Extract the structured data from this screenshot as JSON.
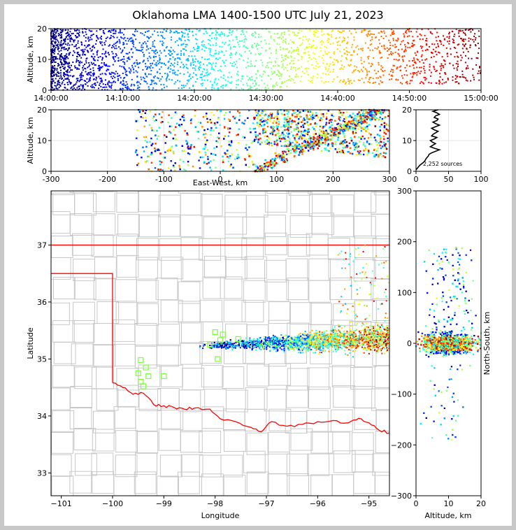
{
  "title": "Oklahoma LMA 1400-1500 UTC July 21, 2023",
  "colors": {
    "border_red": "#ff0000",
    "county": "#c8c8c8",
    "hist_line": "#000000",
    "grid": "#e6e6e6",
    "colormap": "jet (blue early -> red late)"
  },
  "chart_data": [
    {
      "type": "scatter",
      "panel": "altitude-time",
      "xlabel": "",
      "ylabel": "Altitude, km",
      "xlim": [
        "14:00:00",
        "15:00:00"
      ],
      "ylim": [
        0,
        20
      ],
      "x_ticks": [
        "14:00:00",
        "14:10:00",
        "14:20:00",
        "14:30:00",
        "14:40:00",
        "14:50:00",
        "15:00:00"
      ],
      "y_ticks": [
        0,
        10,
        20
      ],
      "color_by": "time"
    },
    {
      "type": "scatter",
      "panel": "altitude-eastwest",
      "xlabel": "East-West, km",
      "ylabel": "Altitude, km",
      "xlim": [
        -300,
        300
      ],
      "ylim": [
        0,
        20
      ],
      "x_ticks": [
        -300,
        -200,
        -100,
        0,
        100,
        200,
        300
      ],
      "y_ticks": [
        0,
        10,
        20
      ],
      "grid": true
    },
    {
      "type": "line",
      "panel": "altitude-histogram",
      "annotation": "2,252 sources",
      "xlim": [
        0,
        100
      ],
      "ylim": [
        0,
        20
      ],
      "x_ticks": [
        0,
        50,
        100
      ],
      "y_ticks": [
        0,
        10,
        20
      ],
      "grid": true,
      "profile": [
        [
          0,
          0.5
        ],
        [
          2,
          1
        ],
        [
          4,
          1.5
        ],
        [
          6,
          2
        ],
        [
          9,
          2.5
        ],
        [
          12,
          3
        ],
        [
          14,
          3.5
        ],
        [
          15,
          4
        ],
        [
          17,
          4.5
        ],
        [
          19,
          5
        ],
        [
          20,
          5.5
        ],
        [
          24,
          6
        ],
        [
          30,
          6.5
        ],
        [
          36,
          7
        ],
        [
          28,
          7.5
        ],
        [
          22,
          8
        ],
        [
          26,
          8.5
        ],
        [
          30,
          9
        ],
        [
          25,
          9.5
        ],
        [
          22,
          10
        ],
        [
          28,
          10.5
        ],
        [
          32,
          11
        ],
        [
          24,
          11.5
        ],
        [
          26,
          12
        ],
        [
          30,
          12.5
        ],
        [
          34,
          13
        ],
        [
          28,
          13.5
        ],
        [
          24,
          14
        ],
        [
          30,
          14.5
        ],
        [
          36,
          15
        ],
        [
          30,
          15.5
        ],
        [
          26,
          16
        ],
        [
          32,
          16.5
        ],
        [
          34,
          17
        ],
        [
          28,
          17.5
        ],
        [
          30,
          18
        ],
        [
          36,
          18.5
        ],
        [
          32,
          19
        ],
        [
          26,
          19.5
        ],
        [
          34,
          20
        ]
      ]
    },
    {
      "type": "scatter",
      "panel": "plan-view",
      "xlabel": "Longitude",
      "ylabel": "Latitude",
      "xlim": [
        -101.2,
        -94.6
      ],
      "ylim": [
        32.6,
        37.95
      ],
      "x_ticks": [
        -101,
        -100,
        -99,
        -98,
        -97,
        -96,
        -95
      ],
      "y_ticks": [
        33,
        34,
        35,
        36,
        37
      ],
      "station_markers": [
        [
          -99.45,
          34.98
        ],
        [
          -99.35,
          34.85
        ],
        [
          -99.5,
          34.75
        ],
        [
          -99.3,
          34.7
        ],
        [
          -99.0,
          34.7
        ],
        [
          -99.45,
          34.6
        ],
        [
          -99.4,
          34.52
        ],
        [
          -98.0,
          35.47
        ],
        [
          -97.85,
          35.43
        ],
        [
          -97.9,
          35.33
        ],
        [
          -98.1,
          35.25
        ],
        [
          -97.95,
          35.0
        ],
        [
          -97.55,
          35.35
        ]
      ]
    },
    {
      "type": "scatter",
      "panel": "northsouth-altitude",
      "xlabel": "Altitude, km",
      "ylabel": "North-South, km",
      "xlim": [
        0,
        20
      ],
      "ylim": [
        -300,
        300
      ],
      "x_ticks": [
        0,
        10,
        20
      ],
      "y_ticks": [
        -300,
        -200,
        -100,
        0,
        100,
        200,
        300
      ]
    }
  ]
}
